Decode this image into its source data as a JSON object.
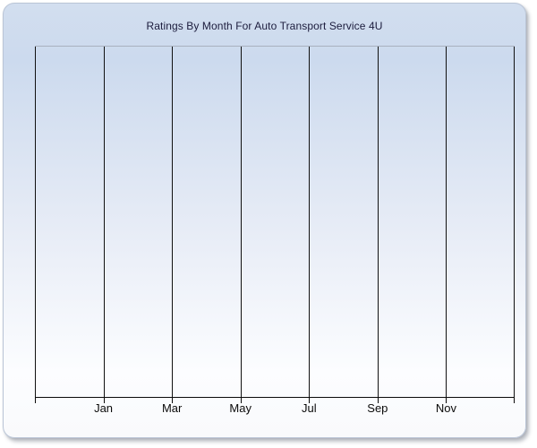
{
  "panel": {
    "title": "Ratings By Month For Auto Transport Service 4U"
  },
  "chart_data": {
    "type": "line",
    "title": "Ratings By Month For Auto Transport Service 4U",
    "xlabel": "",
    "ylabel": "",
    "x_tick_labels": [
      "Jan",
      "Mar",
      "May",
      "Jul",
      "Sep",
      "Nov"
    ],
    "x_gridline_count": 8,
    "x_axis_note": "vertical gridlines every 2 months; labels centered on alternating gridlines",
    "series": [],
    "values": [],
    "grid": "vertical-only",
    "legend": "none",
    "plot_empty": true
  },
  "colors": {
    "title_color": "#1b1b3c",
    "label_color": "#0a0a0a",
    "gridline_color": "#111111",
    "axis_color": "#0a0a0a",
    "plot_top_border": "#a8b1bf",
    "panel_border": "#bac5d6",
    "grad_top": "#d2deef",
    "grad_upper": "#ccdaee",
    "grad_mid": "#e7ecf6",
    "grad_lower": "#fcfdff",
    "grad_bottom": "#f9fafc"
  }
}
